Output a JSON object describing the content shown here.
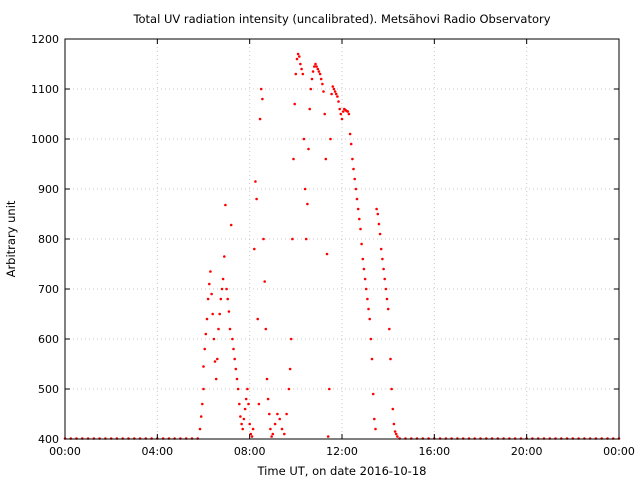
{
  "chart_data": {
    "type": "scatter",
    "title": "Total UV radiation intensity (uncalibrated). Metsähovi Radio Observatory",
    "xlabel": "Time UT, on date 2016-10-18",
    "ylabel": "Arbitrary unit",
    "xlim": [
      0,
      24
    ],
    "ylim": [
      400,
      1200
    ],
    "grid": true,
    "x_ticks": [
      {
        "value": 0,
        "label": "00:00"
      },
      {
        "value": 4,
        "label": "04:00"
      },
      {
        "value": 8,
        "label": "08:00"
      },
      {
        "value": 12,
        "label": "12:00"
      },
      {
        "value": 16,
        "label": "16:00"
      },
      {
        "value": 20,
        "label": "20:00"
      },
      {
        "value": 24,
        "label": "00:00"
      }
    ],
    "y_ticks": [
      {
        "value": 400,
        "label": "400"
      },
      {
        "value": 500,
        "label": "500"
      },
      {
        "value": 600,
        "label": "600"
      },
      {
        "value": 700,
        "label": "700"
      },
      {
        "value": 800,
        "label": "800"
      },
      {
        "value": 900,
        "label": "900"
      },
      {
        "value": 1000,
        "label": "1000"
      },
      {
        "value": 1100,
        "label": "1100"
      },
      {
        "value": 1200,
        "label": "1200"
      }
    ],
    "series": [
      {
        "color": "#ff0000",
        "points": [
          [
            0.0,
            401
          ],
          [
            0.25,
            401
          ],
          [
            0.5,
            401
          ],
          [
            0.75,
            401
          ],
          [
            1.0,
            401
          ],
          [
            1.25,
            401
          ],
          [
            1.5,
            401
          ],
          [
            1.75,
            401
          ],
          [
            2.0,
            401
          ],
          [
            2.25,
            401
          ],
          [
            2.5,
            401
          ],
          [
            2.75,
            401
          ],
          [
            3.0,
            401
          ],
          [
            3.25,
            401
          ],
          [
            3.5,
            401
          ],
          [
            3.75,
            401
          ],
          [
            4.0,
            401
          ],
          [
            4.25,
            401
          ],
          [
            4.5,
            401
          ],
          [
            4.75,
            401
          ],
          [
            5.0,
            401
          ],
          [
            5.25,
            401
          ],
          [
            5.5,
            401
          ],
          [
            5.75,
            401
          ],
          [
            5.85,
            420
          ],
          [
            5.9,
            445
          ],
          [
            5.95,
            470
          ],
          [
            6.0,
            500
          ],
          [
            6.0,
            545
          ],
          [
            6.05,
            580
          ],
          [
            6.1,
            610
          ],
          [
            6.15,
            640
          ],
          [
            6.2,
            680
          ],
          [
            6.25,
            710
          ],
          [
            6.3,
            735
          ],
          [
            6.35,
            690
          ],
          [
            6.4,
            650
          ],
          [
            6.45,
            600
          ],
          [
            6.5,
            555
          ],
          [
            6.55,
            520
          ],
          [
            6.6,
            560
          ],
          [
            6.65,
            620
          ],
          [
            6.7,
            650
          ],
          [
            6.75,
            680
          ],
          [
            6.8,
            700
          ],
          [
            6.85,
            720
          ],
          [
            6.9,
            765
          ],
          [
            6.95,
            868
          ],
          [
            7.0,
            700
          ],
          [
            7.05,
            680
          ],
          [
            7.1,
            655
          ],
          [
            7.15,
            620
          ],
          [
            7.2,
            828
          ],
          [
            7.25,
            600
          ],
          [
            7.3,
            580
          ],
          [
            7.35,
            560
          ],
          [
            7.4,
            540
          ],
          [
            7.45,
            520
          ],
          [
            7.5,
            500
          ],
          [
            7.55,
            470
          ],
          [
            7.6,
            445
          ],
          [
            7.65,
            430
          ],
          [
            7.7,
            420
          ],
          [
            7.75,
            440
          ],
          [
            7.8,
            460
          ],
          [
            7.85,
            480
          ],
          [
            7.9,
            500
          ],
          [
            7.95,
            470
          ],
          [
            8.0,
            430
          ],
          [
            8.05,
            410
          ],
          [
            8.1,
            405
          ],
          [
            8.15,
            420
          ],
          [
            8.2,
            780
          ],
          [
            8.25,
            915
          ],
          [
            8.3,
            880
          ],
          [
            8.35,
            640
          ],
          [
            8.4,
            470
          ],
          [
            8.45,
            1040
          ],
          [
            8.5,
            1100
          ],
          [
            8.55,
            1080
          ],
          [
            8.6,
            800
          ],
          [
            8.65,
            715
          ],
          [
            8.7,
            620
          ],
          [
            8.75,
            520
          ],
          [
            8.8,
            480
          ],
          [
            8.85,
            450
          ],
          [
            8.9,
            420
          ],
          [
            8.95,
            405
          ],
          [
            9.0,
            410
          ],
          [
            9.1,
            430
          ],
          [
            9.2,
            450
          ],
          [
            9.3,
            440
          ],
          [
            9.4,
            420
          ],
          [
            9.5,
            410
          ],
          [
            9.6,
            450
          ],
          [
            9.7,
            500
          ],
          [
            9.75,
            540
          ],
          [
            9.8,
            600
          ],
          [
            9.85,
            800
          ],
          [
            9.9,
            960
          ],
          [
            9.95,
            1070
          ],
          [
            10.0,
            1130
          ],
          [
            10.05,
            1160
          ],
          [
            10.1,
            1170
          ],
          [
            10.15,
            1165
          ],
          [
            10.2,
            1150
          ],
          [
            10.25,
            1140
          ],
          [
            10.3,
            1130
          ],
          [
            10.35,
            1000
          ],
          [
            10.4,
            900
          ],
          [
            10.45,
            800
          ],
          [
            10.5,
            870
          ],
          [
            10.55,
            980
          ],
          [
            10.6,
            1060
          ],
          [
            10.65,
            1100
          ],
          [
            10.7,
            1120
          ],
          [
            10.75,
            1135
          ],
          [
            10.8,
            1145
          ],
          [
            10.85,
            1150
          ],
          [
            10.9,
            1145
          ],
          [
            10.95,
            1140
          ],
          [
            11.0,
            1135
          ],
          [
            11.05,
            1130
          ],
          [
            11.1,
            1120
          ],
          [
            11.15,
            1110
          ],
          [
            11.2,
            1095
          ],
          [
            11.25,
            1050
          ],
          [
            11.3,
            960
          ],
          [
            11.35,
            770
          ],
          [
            11.4,
            405
          ],
          [
            11.45,
            500
          ],
          [
            11.5,
            1000
          ],
          [
            11.55,
            1090
          ],
          [
            11.6,
            1105
          ],
          [
            11.65,
            1100
          ],
          [
            11.7,
            1095
          ],
          [
            11.75,
            1090
          ],
          [
            11.8,
            1085
          ],
          [
            11.85,
            1075
          ],
          [
            11.9,
            1060
          ],
          [
            11.95,
            1050
          ],
          [
            12.0,
            1040
          ],
          [
            12.05,
            1055
          ],
          [
            12.1,
            1060
          ],
          [
            12.15,
            1058
          ],
          [
            12.2,
            1056
          ],
          [
            12.25,
            1055
          ],
          [
            12.3,
            1050
          ],
          [
            12.35,
            1010
          ],
          [
            12.4,
            990
          ],
          [
            12.45,
            960
          ],
          [
            12.5,
            940
          ],
          [
            12.55,
            920
          ],
          [
            12.6,
            900
          ],
          [
            12.65,
            880
          ],
          [
            12.7,
            860
          ],
          [
            12.75,
            840
          ],
          [
            12.8,
            820
          ],
          [
            12.85,
            790
          ],
          [
            12.9,
            760
          ],
          [
            12.95,
            740
          ],
          [
            13.0,
            720
          ],
          [
            13.05,
            700
          ],
          [
            13.1,
            680
          ],
          [
            13.15,
            660
          ],
          [
            13.2,
            640
          ],
          [
            13.25,
            600
          ],
          [
            13.3,
            560
          ],
          [
            13.35,
            490
          ],
          [
            13.4,
            440
          ],
          [
            13.45,
            420
          ],
          [
            13.5,
            860
          ],
          [
            13.55,
            850
          ],
          [
            13.6,
            830
          ],
          [
            13.65,
            810
          ],
          [
            13.7,
            780
          ],
          [
            13.75,
            760
          ],
          [
            13.8,
            740
          ],
          [
            13.85,
            720
          ],
          [
            13.9,
            700
          ],
          [
            13.95,
            680
          ],
          [
            14.0,
            660
          ],
          [
            14.05,
            620
          ],
          [
            14.1,
            560
          ],
          [
            14.15,
            500
          ],
          [
            14.2,
            460
          ],
          [
            14.25,
            430
          ],
          [
            14.3,
            415
          ],
          [
            14.35,
            410
          ],
          [
            14.4,
            405
          ],
          [
            14.5,
            401
          ],
          [
            14.75,
            401
          ],
          [
            15.0,
            401
          ],
          [
            15.25,
            401
          ],
          [
            15.5,
            401
          ],
          [
            15.75,
            401
          ],
          [
            16.0,
            401
          ],
          [
            16.25,
            401
          ],
          [
            16.5,
            401
          ],
          [
            16.75,
            401
          ],
          [
            17.0,
            401
          ],
          [
            17.25,
            401
          ],
          [
            17.5,
            401
          ],
          [
            17.75,
            401
          ],
          [
            18.0,
            401
          ],
          [
            18.25,
            401
          ],
          [
            18.5,
            401
          ],
          [
            18.75,
            401
          ],
          [
            19.0,
            401
          ],
          [
            19.25,
            401
          ],
          [
            19.5,
            401
          ],
          [
            19.75,
            401
          ],
          [
            20.0,
            401
          ],
          [
            20.25,
            401
          ],
          [
            20.5,
            401
          ],
          [
            20.75,
            401
          ],
          [
            21.0,
            401
          ],
          [
            21.25,
            401
          ],
          [
            21.5,
            401
          ],
          [
            21.75,
            401
          ],
          [
            22.0,
            401
          ],
          [
            22.25,
            401
          ],
          [
            22.5,
            401
          ],
          [
            22.75,
            401
          ],
          [
            23.0,
            401
          ],
          [
            23.25,
            401
          ],
          [
            23.5,
            401
          ],
          [
            23.75,
            401
          ],
          [
            24.0,
            401
          ]
        ]
      }
    ]
  }
}
